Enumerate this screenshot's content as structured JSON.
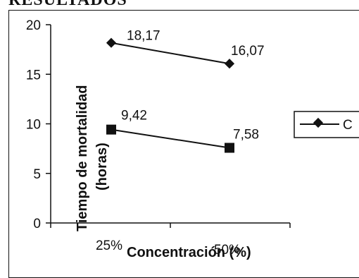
{
  "header": {
    "text": "RESULTADOS"
  },
  "chart_data": {
    "type": "line",
    "categories": [
      "25%",
      "50%"
    ],
    "series": [
      {
        "name": "C",
        "values": [
          18.17,
          16.07
        ],
        "labels": [
          "18,17",
          "16,07"
        ],
        "marker": "diamond"
      },
      {
        "name": "",
        "values": [
          9.42,
          7.58
        ],
        "labels": [
          "9,42",
          "7,58"
        ],
        "marker": "square"
      }
    ],
    "xlabel": "Concentración (%)",
    "ylabel_lines": [
      "Tiempo de mortalidad",
      "(horas)"
    ],
    "ylim": [
      0,
      20
    ],
    "yticks": [
      "0",
      "5",
      "10",
      "15",
      "20"
    ],
    "grid": false,
    "legend": {
      "position": "right",
      "entries": [
        "C"
      ]
    },
    "colors": {
      "line": "#111111",
      "marker": "#111111"
    }
  }
}
